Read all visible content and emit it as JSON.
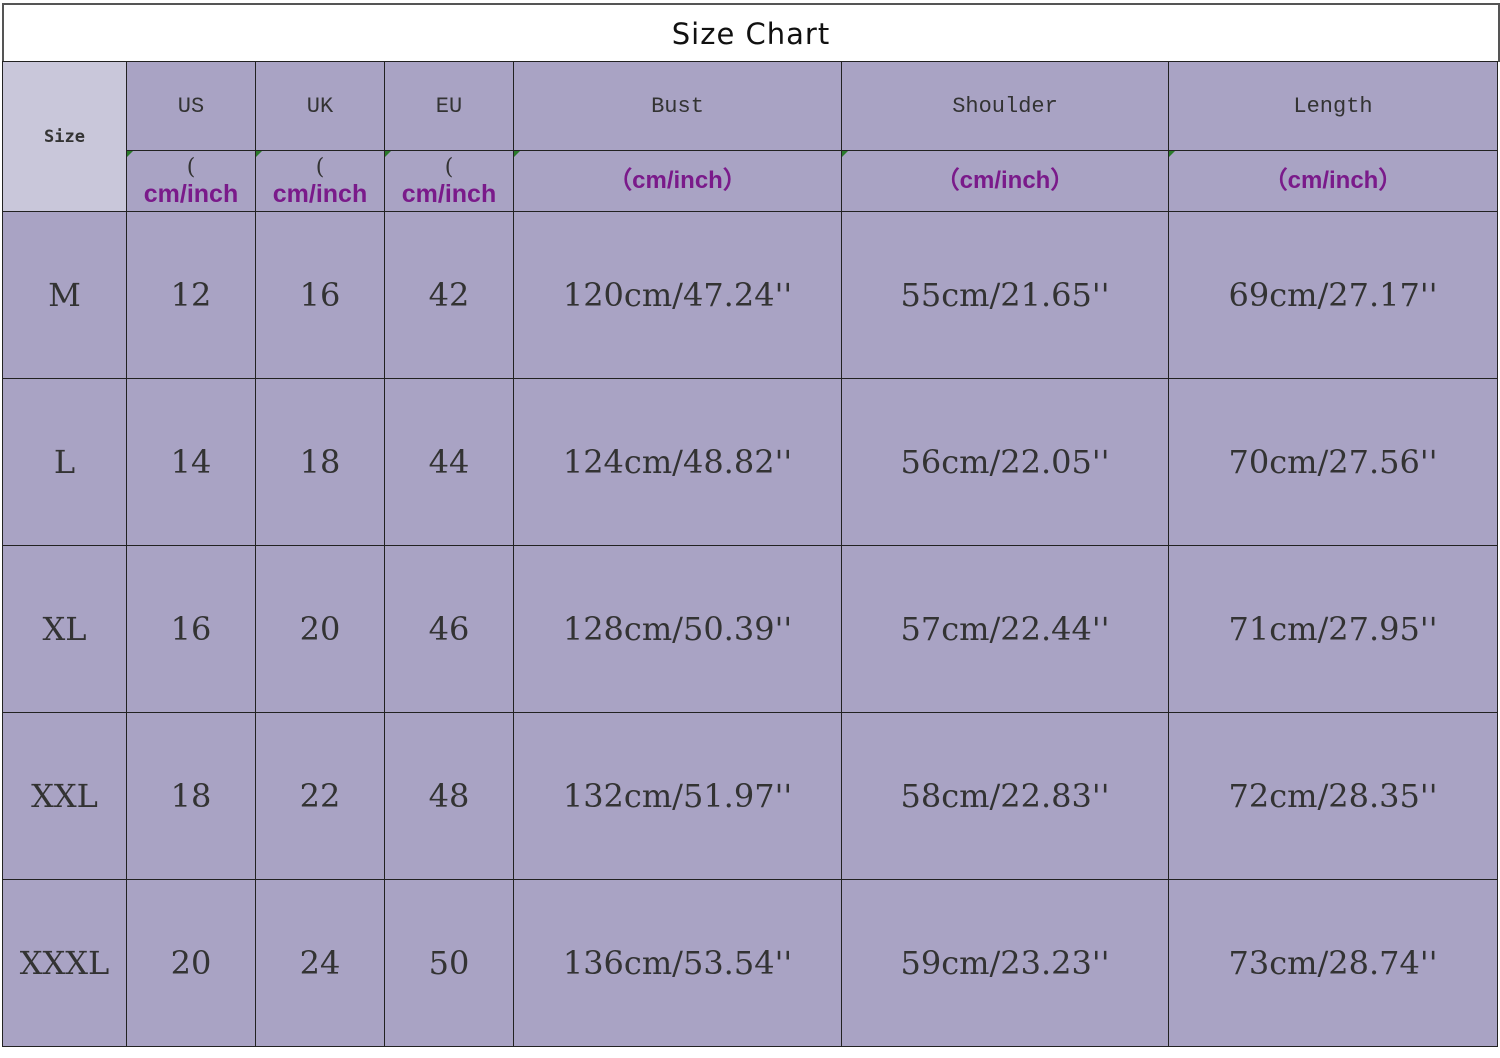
{
  "title": "Size Chart",
  "header": {
    "size": "Size",
    "columns": [
      "US",
      "UK",
      "EU",
      "Bust",
      "Shoulder",
      "Length"
    ],
    "unit": "cm/inch",
    "open_paren": "(",
    "unit_full": "（cm/inch）"
  },
  "rows": [
    {
      "size": "M",
      "us": "12",
      "uk": "16",
      "eu": "42",
      "bust": "120cm/47.24''",
      "shoulder": "55cm/21.65''",
      "length": "69cm/27.17''"
    },
    {
      "size": "L",
      "us": "14",
      "uk": "18",
      "eu": "44",
      "bust": "124cm/48.82''",
      "shoulder": "56cm/22.05''",
      "length": "70cm/27.56''"
    },
    {
      "size": "XL",
      "us": "16",
      "uk": "20",
      "eu": "46",
      "bust": "128cm/50.39''",
      "shoulder": "57cm/22.44''",
      "length": "71cm/27.95''"
    },
    {
      "size": "XXL",
      "us": "18",
      "uk": "22",
      "eu": "48",
      "bust": "132cm/51.97''",
      "shoulder": "58cm/22.83''",
      "length": "72cm/28.35''"
    },
    {
      "size": "XXXL",
      "us": "20",
      "uk": "24",
      "eu": "50",
      "bust": "136cm/53.54''",
      "shoulder": "59cm/23.23''",
      "length": "73cm/28.74''"
    }
  ],
  "colors": {
    "cell": "#a9a3c4",
    "size_header": "#c9c7da",
    "unit_text": "#7a1a8a"
  }
}
